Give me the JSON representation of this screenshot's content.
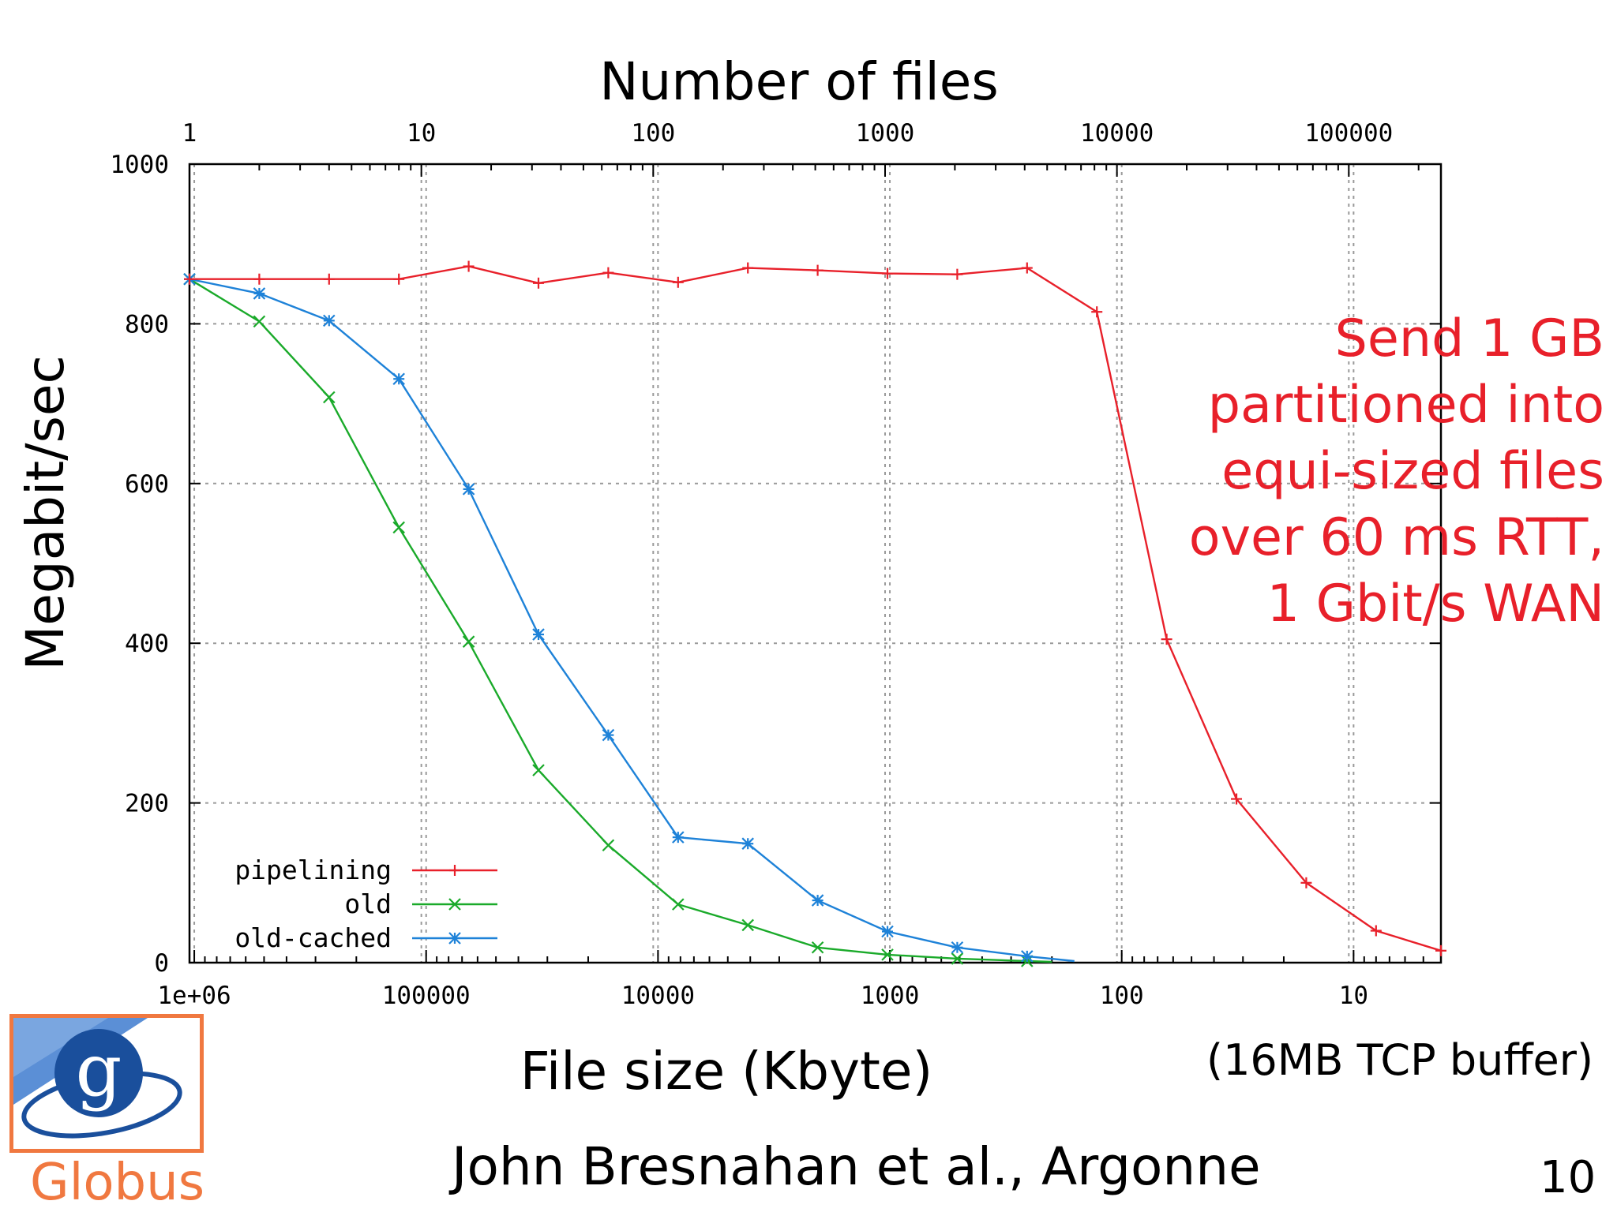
{
  "chart_data": {
    "type": "line",
    "title": "",
    "xlabel": "File size (Kbyte)",
    "x2label": "Number of files",
    "ylabel": "Megabit/sec",
    "x_scale": "log",
    "x_reversed": true,
    "xlim": [
      1048576,
      4.2
    ],
    "ylim": [
      0,
      1000
    ],
    "grid": true,
    "legend_position": "bottom-left",
    "x_ticks": [
      "1e+06",
      "100000",
      "10000",
      "1000",
      "100",
      "10"
    ],
    "x2_ticks": [
      "1",
      "10",
      "100",
      "1000",
      "10000",
      "100000"
    ],
    "y_ticks": [
      "0",
      "200",
      "400",
      "600",
      "800",
      "1000"
    ],
    "series": [
      {
        "name": "pipelining",
        "color": "#e8202a",
        "marker": "plus",
        "x": [
          1048576,
          524288,
          262144,
          131072,
          65536,
          32768,
          16384,
          8192,
          4096,
          2048,
          1024,
          512,
          256,
          128,
          64,
          32,
          16,
          8,
          4.2
        ],
        "y": [
          856,
          856,
          856,
          856,
          872,
          851,
          864,
          852,
          870,
          867,
          863,
          862,
          870,
          815,
          405,
          205,
          100,
          40,
          15
        ]
      },
      {
        "name": "old",
        "color": "#1aaa2a",
        "marker": "x",
        "x": [
          1048576,
          524288,
          262144,
          131072,
          65536,
          32768,
          16384,
          8192,
          4096,
          2048,
          1024,
          512,
          256,
          200
        ],
        "y": [
          856,
          803,
          708,
          545,
          402,
          241,
          147,
          73,
          47,
          19,
          10,
          5,
          2,
          1
        ]
      },
      {
        "name": "old-cached",
        "color": "#1e82d8",
        "marker": "star",
        "x": [
          1048576,
          524288,
          262144,
          131072,
          65536,
          32768,
          16384,
          8192,
          4096,
          2048,
          1024,
          512,
          256,
          160
        ],
        "y": [
          856,
          838,
          804,
          731,
          593,
          411,
          285,
          157,
          149,
          78,
          39,
          19,
          8,
          2
        ]
      }
    ]
  },
  "annotation": {
    "line1": "Send 1 GB",
    "line2": "partitioned into",
    "line3": "equi-sized files",
    "line4": "over 60 ms RTT,",
    "line5": "1 Gbit/s WAN"
  },
  "buffer_note": "(16MB TCP buffer)",
  "credit": "John Bresnahan et al., Argonne",
  "slide_number": "10",
  "logo": {
    "text": "Globus",
    "letter": "g"
  },
  "colors": {
    "annotation": "#e8202a",
    "logo_orange": "#f07840",
    "logo_blue": "#1a4f9c"
  }
}
